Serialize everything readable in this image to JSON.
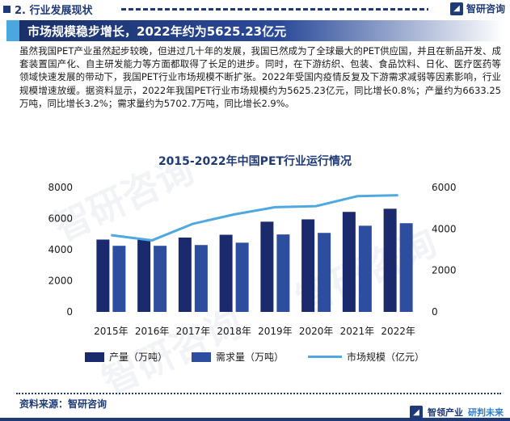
{
  "header": {
    "section_label": "2. 行业发展现状",
    "brand": "智研咨询",
    "banner_title": "市场规模稳步增长，2022年约为5625.23亿元"
  },
  "body_text": "虽然我国PET产业虽然起步较晚，但进过几十年的发展，我国已然成为了全球最大的PET供应国，并且在新品开发、成套装置国产化、自主研发能力等方面都取得了长足的进步。同时，在下游纺织、包装、食品饮料、日化、医疗医药等领域快速发展的带动下，我国PET行业市场规模不断扩张。2022年受国内疫情反复及下游需求减弱等因素影响，行业规模增速放缓。据资料显示，2022年我国PET行业市场规模约为5625.23亿元，同比增长0.8%；产量约为6633.25万吨，同比增长3.2%；需求量约为5702.7万吨，同比增长2.9%。",
  "chart_data": {
    "type": "bar",
    "title": "2015-2022年中国PET行业运行情况",
    "categories": [
      "2015年",
      "2016年",
      "2017年",
      "2018年",
      "2019年",
      "2020年",
      "2021年",
      "2022年"
    ],
    "series": [
      {
        "name": "产量（万吨）",
        "type": "bar",
        "axis": "left",
        "color": "#1a2a6c",
        "values": [
          4650,
          4700,
          4780,
          4960,
          5800,
          5950,
          6430,
          6633.25
        ]
      },
      {
        "name": "需求量（万吨）",
        "type": "bar",
        "axis": "left",
        "color": "#2d4d9e",
        "values": [
          4250,
          4250,
          4300,
          4450,
          4980,
          5080,
          5540,
          5702.7
        ]
      },
      {
        "name": "市场规模（亿元）",
        "type": "line",
        "axis": "right",
        "color": "#4fa8e0",
        "values": [
          3700,
          3450,
          4250,
          4700,
          5050,
          5100,
          5580,
          5625.23
        ]
      }
    ],
    "left_axis": {
      "ylim": [
        0,
        8000
      ],
      "ticks": [
        "0",
        "2000",
        "4000",
        "6000",
        "8000"
      ]
    },
    "right_axis": {
      "ylim": [
        0,
        6000
      ],
      "ticks": [
        "0",
        "2000",
        "4000",
        "6000"
      ]
    },
    "grid": false,
    "legend_position": "bottom"
  },
  "footer": {
    "source": "资料来源：智研咨询",
    "brand_left": "智领产业",
    "brand_right": "研判未来"
  }
}
